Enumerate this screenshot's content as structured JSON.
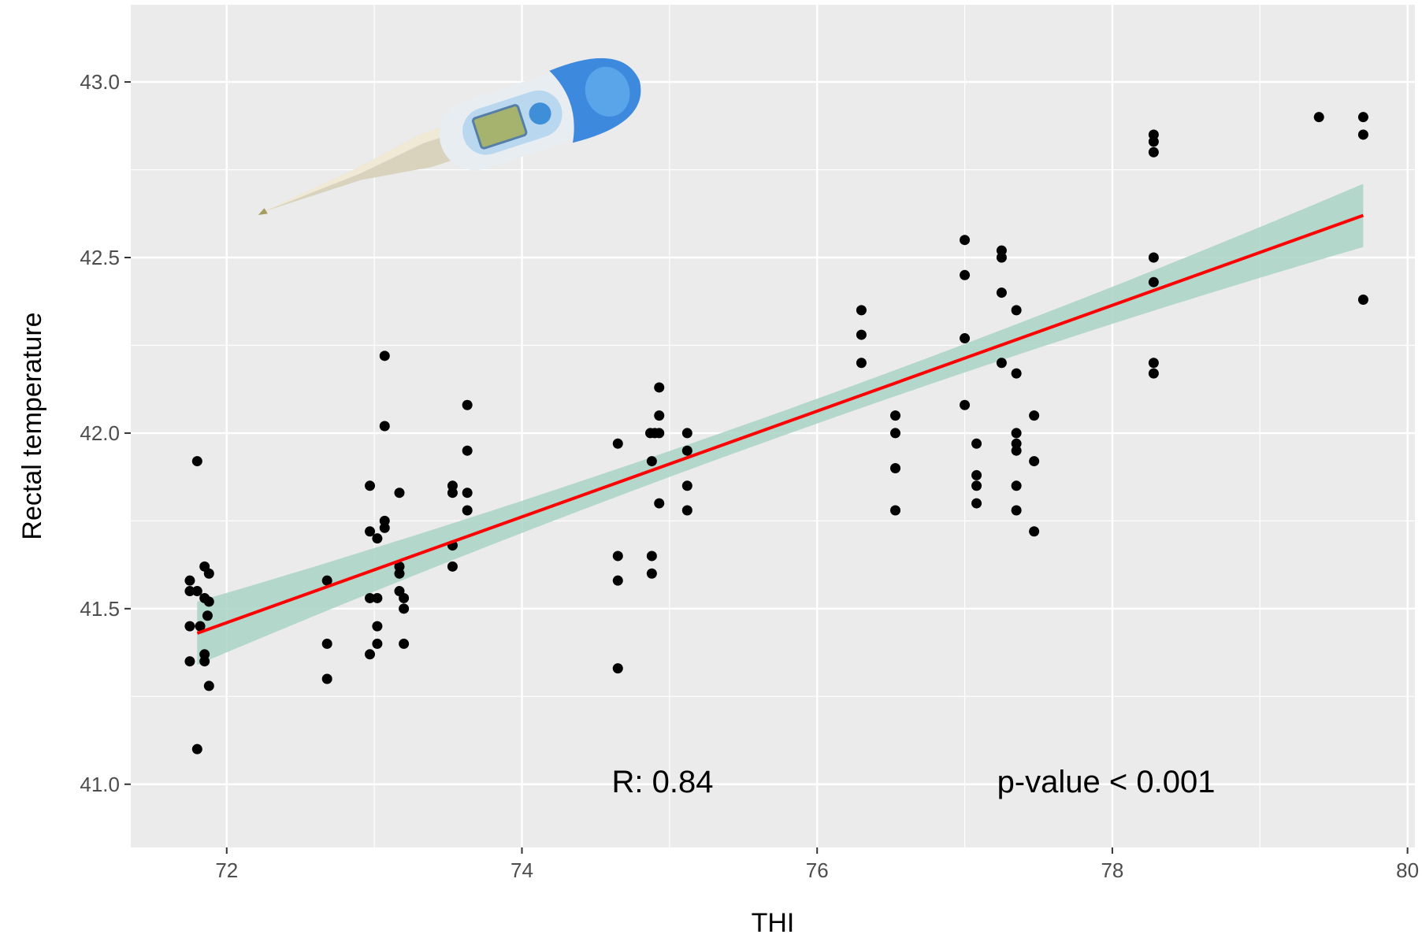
{
  "chart_data": {
    "type": "scatter",
    "xlabel": "THI",
    "ylabel": "Rectal temperature",
    "xlim": [
      71.35,
      80.05
    ],
    "ylim": [
      40.82,
      43.22
    ],
    "x_ticks": [
      "72",
      "74",
      "76",
      "78",
      "80"
    ],
    "y_ticks": [
      "41.0",
      "41.5",
      "42.0",
      "42.5",
      "43.0"
    ],
    "grid": true,
    "annotations": {
      "r": "R: 0.84",
      "p": "p-value < 0.001"
    },
    "colors": {
      "panel": "#ebebeb",
      "grid": "#ffffff",
      "points": "#000000",
      "fit": "#ff0000",
      "band": "#a9d3c5"
    },
    "fit": {
      "x": [
        71.8,
        79.7
      ],
      "y": [
        41.43,
        42.62
      ],
      "band_half_width_ends": 0.09,
      "band_half_width_center": 0.035
    },
    "points": [
      [
        71.8,
        41.92
      ],
      [
        71.75,
        41.58
      ],
      [
        71.75,
        41.55
      ],
      [
        71.85,
        41.62
      ],
      [
        71.88,
        41.6
      ],
      [
        71.8,
        41.55
      ],
      [
        71.85,
        41.53
      ],
      [
        71.88,
        41.52
      ],
      [
        71.87,
        41.48
      ],
      [
        71.75,
        41.45
      ],
      [
        71.82,
        41.45
      ],
      [
        71.85,
        41.37
      ],
      [
        71.75,
        41.35
      ],
      [
        71.85,
        41.35
      ],
      [
        71.88,
        41.28
      ],
      [
        71.8,
        41.1
      ],
      [
        72.68,
        41.58
      ],
      [
        72.68,
        41.4
      ],
      [
        72.68,
        41.3
      ],
      [
        72.97,
        41.85
      ],
      [
        72.97,
        41.72
      ],
      [
        73.02,
        41.7
      ],
      [
        73.07,
        41.75
      ],
      [
        73.07,
        41.73
      ],
      [
        73.07,
        42.22
      ],
      [
        73.07,
        42.02
      ],
      [
        73.17,
        41.83
      ],
      [
        72.97,
        41.53
      ],
      [
        73.02,
        41.53
      ],
      [
        73.17,
        41.6
      ],
      [
        73.17,
        41.62
      ],
      [
        73.17,
        41.55
      ],
      [
        73.2,
        41.53
      ],
      [
        73.2,
        41.5
      ],
      [
        73.02,
        41.45
      ],
      [
        73.02,
        41.4
      ],
      [
        72.97,
        41.37
      ],
      [
        73.2,
        41.4
      ],
      [
        73.53,
        41.85
      ],
      [
        73.53,
        41.83
      ],
      [
        73.63,
        42.08
      ],
      [
        73.63,
        41.95
      ],
      [
        73.63,
        41.83
      ],
      [
        73.63,
        41.78
      ],
      [
        73.53,
        41.68
      ],
      [
        73.53,
        41.62
      ],
      [
        74.65,
        41.97
      ],
      [
        74.65,
        41.65
      ],
      [
        74.65,
        41.58
      ],
      [
        74.65,
        41.33
      ],
      [
        74.87,
        42.0
      ],
      [
        74.9,
        42.0
      ],
      [
        74.93,
        42.13
      ],
      [
        74.93,
        42.05
      ],
      [
        74.93,
        42.0
      ],
      [
        74.88,
        41.92
      ],
      [
        74.93,
        41.8
      ],
      [
        74.88,
        41.65
      ],
      [
        74.88,
        41.6
      ],
      [
        75.12,
        42.0
      ],
      [
        75.12,
        41.95
      ],
      [
        75.12,
        41.85
      ],
      [
        75.12,
        41.78
      ],
      [
        76.3,
        42.35
      ],
      [
        76.3,
        42.28
      ],
      [
        76.3,
        42.2
      ],
      [
        76.53,
        42.05
      ],
      [
        76.53,
        42.0
      ],
      [
        76.53,
        41.9
      ],
      [
        76.53,
        41.78
      ],
      [
        77.0,
        42.55
      ],
      [
        77.0,
        42.45
      ],
      [
        77.0,
        42.27
      ],
      [
        77.0,
        42.08
      ],
      [
        77.08,
        41.97
      ],
      [
        77.08,
        41.88
      ],
      [
        77.08,
        41.85
      ],
      [
        77.08,
        41.8
      ],
      [
        77.25,
        42.52
      ],
      [
        77.25,
        42.5
      ],
      [
        77.25,
        42.4
      ],
      [
        77.25,
        42.2
      ],
      [
        77.35,
        42.35
      ],
      [
        77.35,
        42.17
      ],
      [
        77.35,
        42.0
      ],
      [
        77.35,
        41.97
      ],
      [
        77.35,
        41.95
      ],
      [
        77.35,
        41.85
      ],
      [
        77.35,
        41.78
      ],
      [
        77.47,
        42.05
      ],
      [
        77.47,
        41.92
      ],
      [
        77.47,
        41.72
      ],
      [
        78.28,
        42.85
      ],
      [
        78.28,
        42.83
      ],
      [
        78.28,
        42.8
      ],
      [
        78.28,
        42.5
      ],
      [
        78.28,
        42.43
      ],
      [
        78.28,
        42.2
      ],
      [
        78.28,
        42.17
      ],
      [
        79.4,
        42.9
      ],
      [
        79.7,
        42.9
      ],
      [
        79.7,
        42.85
      ],
      [
        79.7,
        42.38
      ]
    ]
  }
}
